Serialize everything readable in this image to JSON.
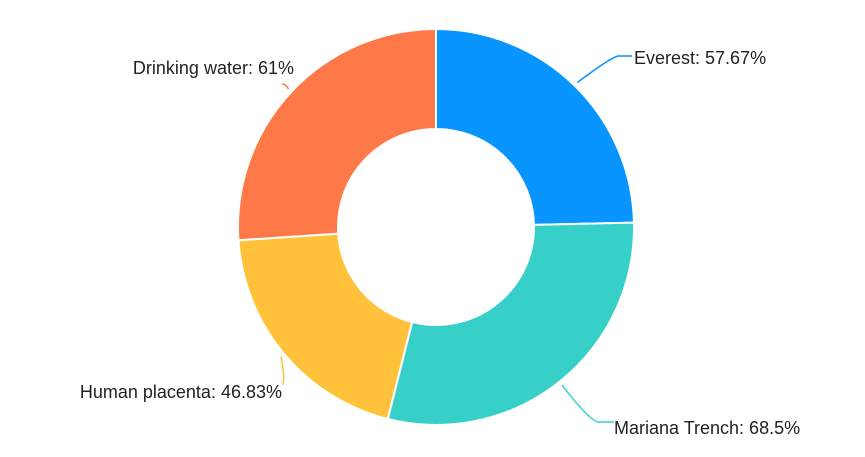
{
  "chart_data": {
    "type": "pie",
    "variant": "donut",
    "title": "",
    "legend": "none",
    "slices": [
      {
        "name": "Everest",
        "value": 57.67,
        "label": "Everest: 57.67%",
        "color": "#0995ff"
      },
      {
        "name": "Mariana Trench",
        "value": 68.5,
        "label": "Mariana Trench: 68.5%",
        "color": "#36d0c8"
      },
      {
        "name": "Human placenta",
        "value": 46.83,
        "label": "Human placenta: 46.83%",
        "color": "#ffc23a"
      },
      {
        "name": "Drinking water",
        "value": 61,
        "label": "Drinking water: 61%",
        "color": "#ff7847"
      }
    ]
  }
}
